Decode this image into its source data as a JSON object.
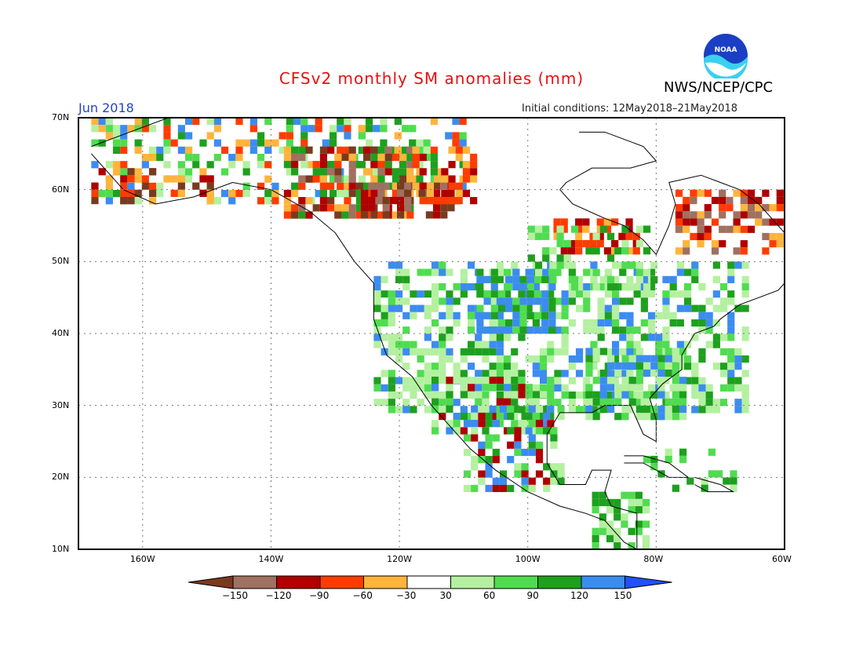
{
  "title": "CFSv2 monthly SM anomalies (mm)",
  "org": "NWS/NCEP/CPC",
  "logo_text": "NOAA",
  "month": "Jun 2018",
  "initial_conditions": "Initial conditions: 12May2018–21May2018",
  "lat_labels": [
    "70N",
    "60N",
    "50N",
    "40N",
    "30N",
    "20N",
    "10N"
  ],
  "lon_labels": [
    "160W",
    "140W",
    "120W",
    "100W",
    "80W",
    "60W"
  ],
  "colorbar": {
    "labels": [
      "−150",
      "−120",
      "−90",
      "−60",
      "−30",
      "30",
      "60",
      "90",
      "120",
      "150"
    ],
    "colors": [
      "#7a3a1e",
      "#a07060",
      "#b00000",
      "#ff3c00",
      "#ffb43c",
      "#ffffff",
      "#b4f0a0",
      "#50dc50",
      "#1ea01e",
      "#3c8cf0",
      "#2050ff"
    ]
  }
}
